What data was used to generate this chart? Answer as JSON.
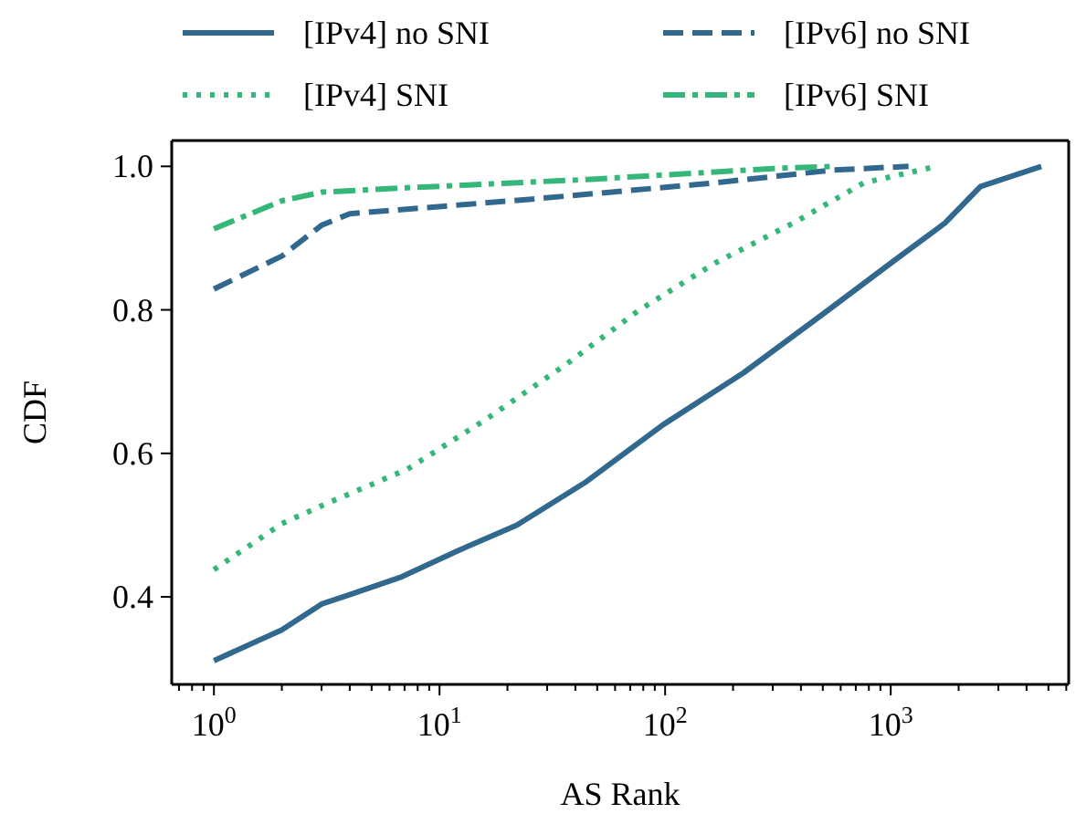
{
  "chart_data": {
    "type": "line",
    "xlabel": "AS Rank",
    "ylabel": "CDF",
    "log": "x",
    "legend": "top",
    "grid": false,
    "xlim": [
      0.65,
      6150
    ],
    "ylim": [
      0.278,
      1.036
    ],
    "xticks": [
      {
        "value": 0.7,
        "label": null
      },
      {
        "value": 0.8,
        "label": null
      },
      {
        "value": 0.9,
        "label": null
      },
      {
        "value": 1,
        "label": "10$^{0}$"
      },
      {
        "value": 2,
        "label": null
      },
      {
        "value": 3,
        "label": null
      },
      {
        "value": 4,
        "label": null
      },
      {
        "value": 5,
        "label": null
      },
      {
        "value": 6,
        "label": null
      },
      {
        "value": 7,
        "label": null
      },
      {
        "value": 8,
        "label": null
      },
      {
        "value": 9,
        "label": null
      },
      {
        "value": 10,
        "label": "10$^{1}$"
      },
      {
        "value": 20,
        "label": null
      },
      {
        "value": 30,
        "label": null
      },
      {
        "value": 40,
        "label": null
      },
      {
        "value": 50,
        "label": null
      },
      {
        "value": 60,
        "label": null
      },
      {
        "value": 70,
        "label": null
      },
      {
        "value": 80,
        "label": null
      },
      {
        "value": 90,
        "label": null
      },
      {
        "value": 100,
        "label": "10$^{2}$"
      },
      {
        "value": 200,
        "label": null
      },
      {
        "value": 300,
        "label": null
      },
      {
        "value": 400,
        "label": null
      },
      {
        "value": 500,
        "label": null
      },
      {
        "value": 600,
        "label": null
      },
      {
        "value": 700,
        "label": null
      },
      {
        "value": 800,
        "label": null
      },
      {
        "value": 900,
        "label": null
      },
      {
        "value": 1000,
        "label": "10$^{3}$"
      },
      {
        "value": 2000,
        "label": null
      },
      {
        "value": 3000,
        "label": null
      },
      {
        "value": 4000,
        "label": null
      },
      {
        "value": 5000,
        "label": null
      },
      {
        "value": 6000,
        "label": null
      }
    ],
    "yticks": [
      0.4,
      0.6,
      0.8,
      {
        "value": 1,
        "label": "1.0"
      }
    ],
    "series": [
      {
        "name": "[IPv4] no SNI",
        "color": "#31688e",
        "line_style": "solid",
        "x": [
          1,
          2,
          3,
          4,
          6.8,
          12,
          22,
          44,
          98,
          222,
          500,
          1050,
          1740,
          2500,
          4650
        ],
        "values": [
          0.311,
          0.354,
          0.39,
          0.403,
          0.428,
          0.464,
          0.5,
          0.559,
          0.64,
          0.712,
          0.794,
          0.87,
          0.921,
          0.972,
          1.0
        ]
      },
      {
        "name": "[IPv6] no SNI",
        "color": "#31688e",
        "line_style": "dashed",
        "x": [
          1,
          2,
          3,
          4,
          25,
          166,
          560,
          1200
        ],
        "values": [
          0.829,
          0.875,
          0.918,
          0.934,
          0.954,
          0.977,
          0.995,
          1.0
        ]
      },
      {
        "name": "[IPv4] SNI",
        "color": "#35b779",
        "line_style": "dotted",
        "x": [
          1,
          2,
          3,
          7.2,
          16,
          36,
          77,
          166,
          370,
          760,
          1600
        ],
        "values": [
          0.438,
          0.502,
          0.527,
          0.578,
          0.647,
          0.723,
          0.8,
          0.865,
          0.921,
          0.977,
          1.0
        ]
      },
      {
        "name": "[IPv6] SNI",
        "color": "#35b779",
        "line_style": "dashdot",
        "x": [
          1,
          2,
          3,
          7,
          47,
          300,
          560
        ],
        "values": [
          0.913,
          0.952,
          0.964,
          0.97,
          0.982,
          0.997,
          1.0
        ]
      }
    ]
  }
}
